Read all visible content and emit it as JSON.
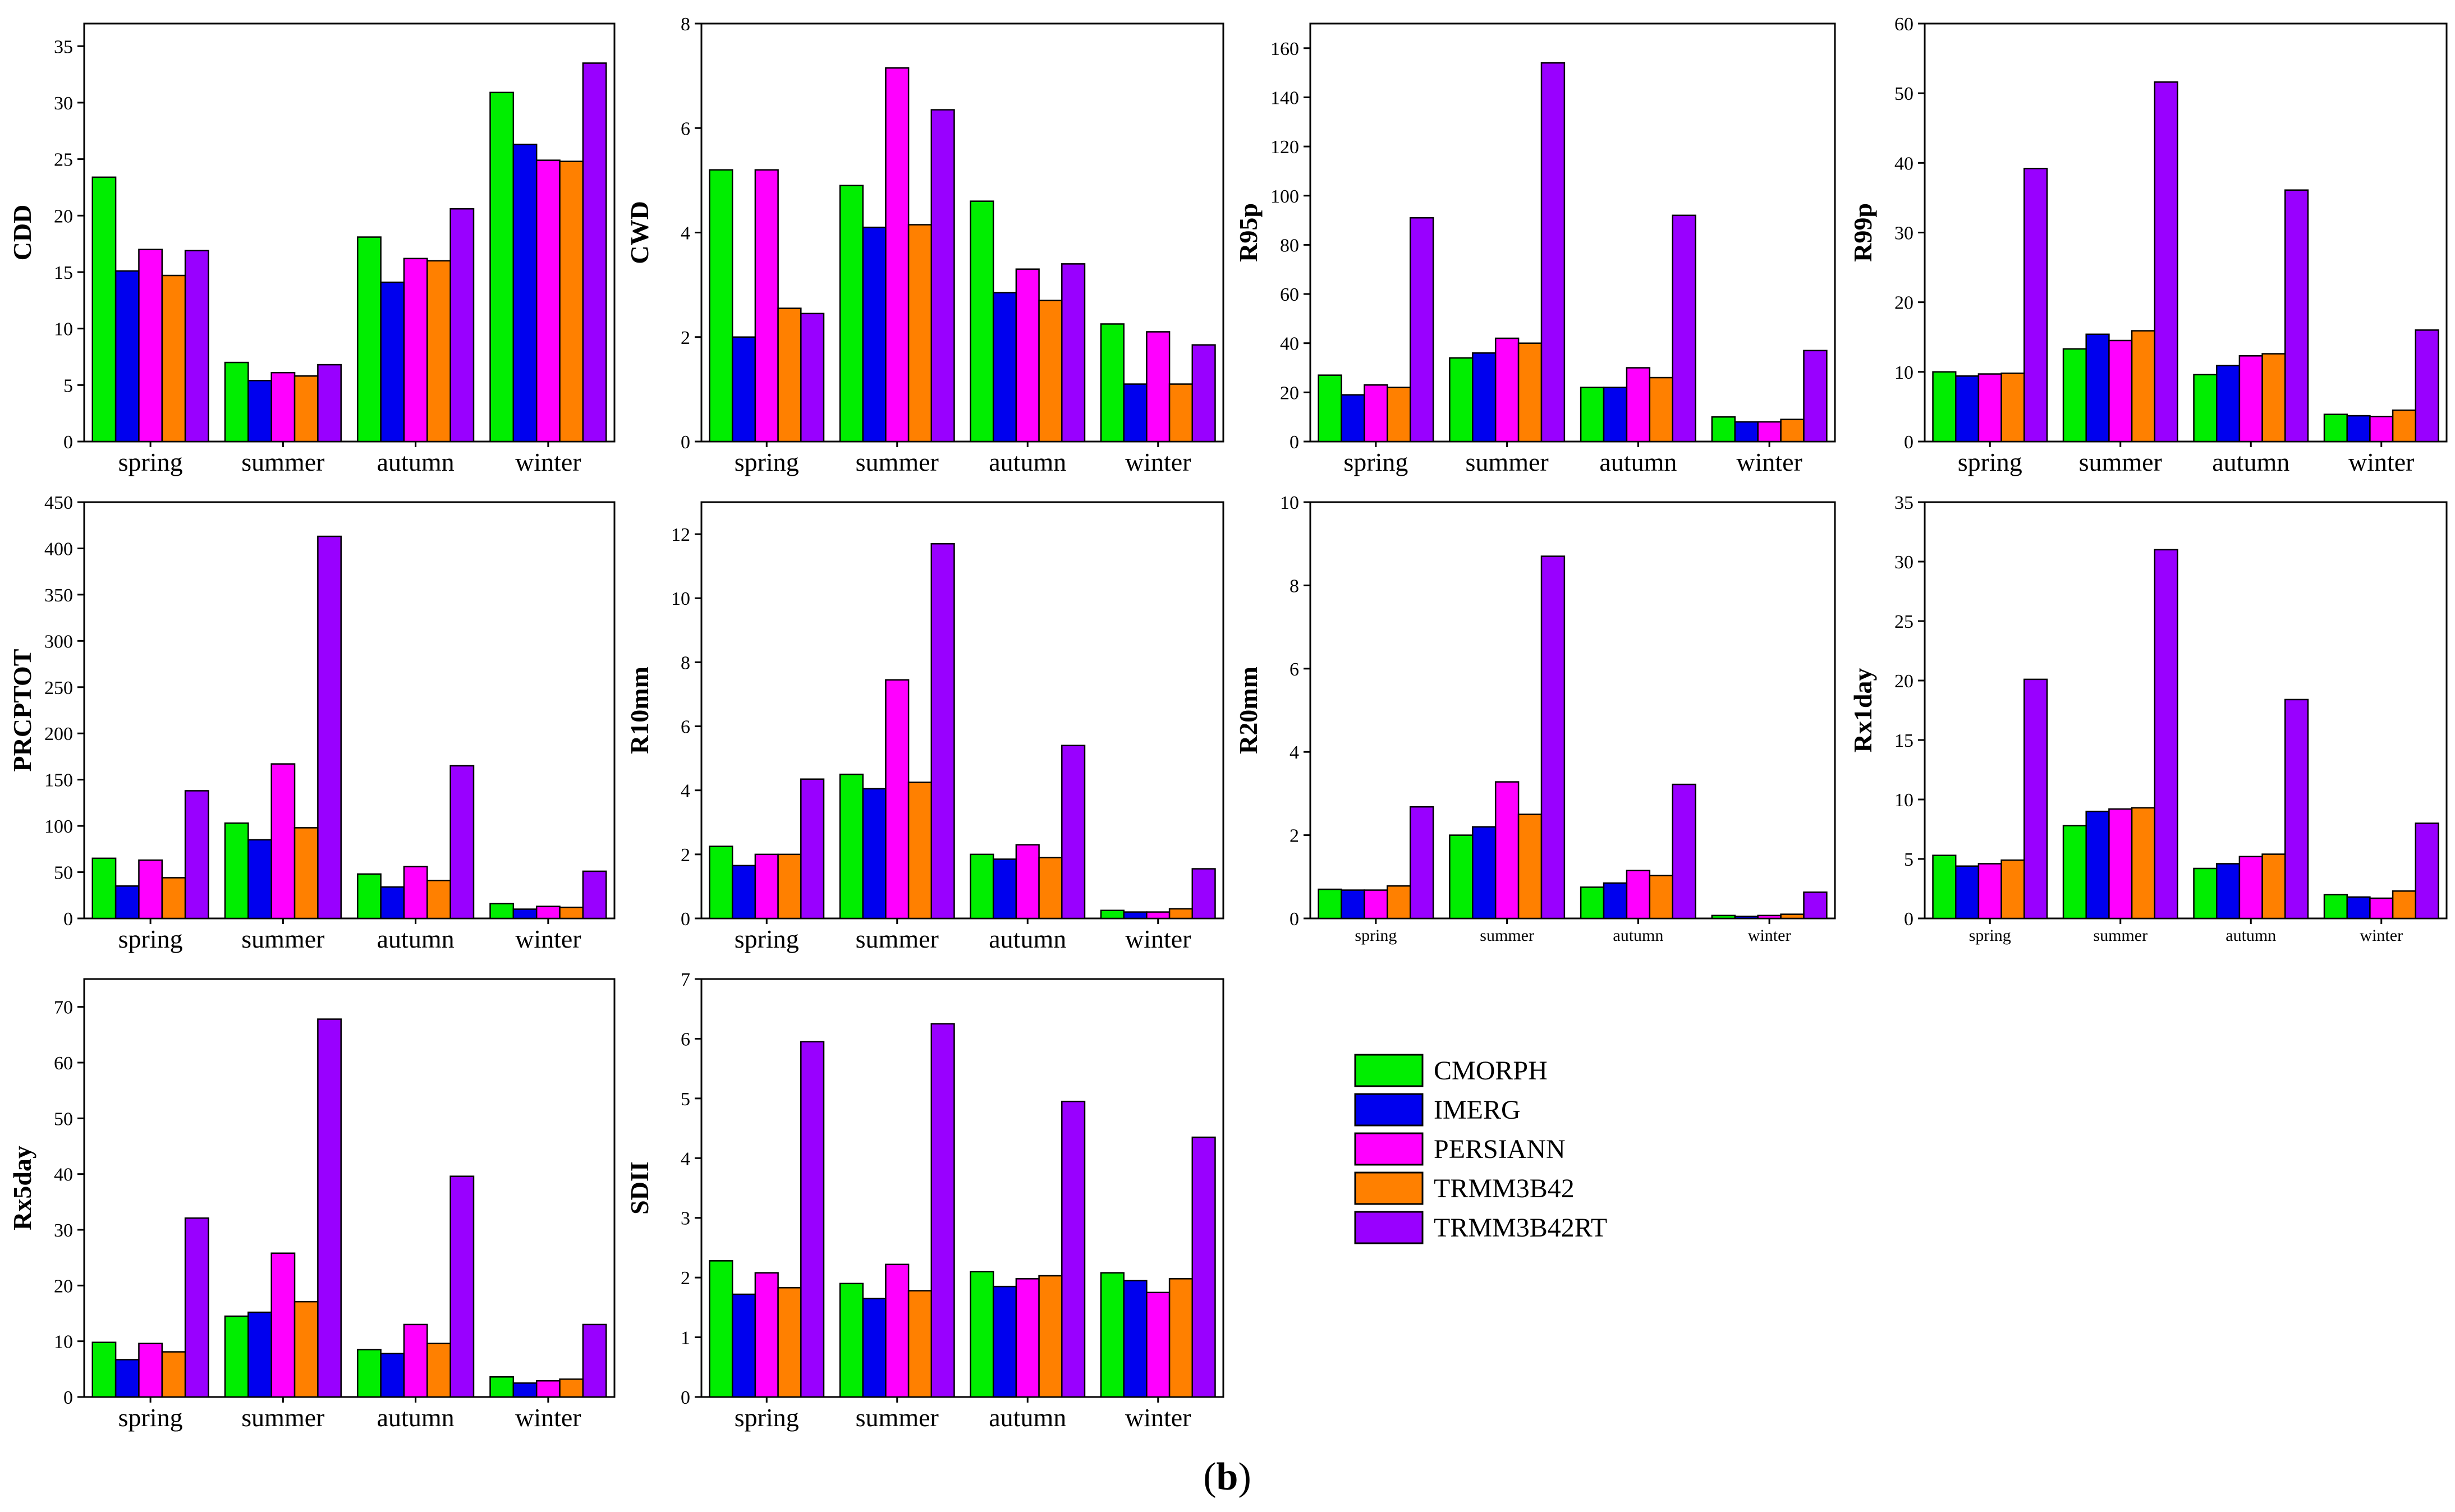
{
  "caption": {
    "open": "(",
    "letter": "b",
    "close": ")"
  },
  "legend": [
    {
      "name": "CMORPH",
      "color": "#00ee00"
    },
    {
      "name": "IMERG",
      "color": "#0000ee"
    },
    {
      "name": "PERSIANN",
      "color": "#ff00ff"
    },
    {
      "name": "TRMM3B42",
      "color": "#ff8000"
    },
    {
      "name": "TRMM3B42RT",
      "color": "#9900ff"
    }
  ],
  "chart_data": [
    {
      "type": "bar",
      "ylabel": "CDD",
      "categories": [
        "spring",
        "summer",
        "autumn",
        "winter"
      ],
      "ylim": [
        0,
        37
      ],
      "yticks": [
        0,
        5,
        10,
        15,
        20,
        25,
        30,
        35
      ],
      "series": [
        {
          "name": "CMORPH",
          "values": [
            23.4,
            7.0,
            18.1,
            30.9
          ]
        },
        {
          "name": "IMERG",
          "values": [
            15.1,
            5.4,
            14.1,
            26.3
          ]
        },
        {
          "name": "PERSIANN",
          "values": [
            17.0,
            6.1,
            16.2,
            24.9
          ]
        },
        {
          "name": "TRMM3B42",
          "values": [
            14.7,
            5.8,
            16.0,
            24.8
          ]
        },
        {
          "name": "TRMM3B42RT",
          "values": [
            16.9,
            6.8,
            20.6,
            33.5
          ]
        }
      ]
    },
    {
      "type": "bar",
      "ylabel": "CWD",
      "categories": [
        "spring",
        "summer",
        "autumn",
        "winter"
      ],
      "ylim": [
        0,
        8
      ],
      "yticks": [
        0,
        2,
        4,
        6,
        8
      ],
      "series": [
        {
          "name": "CMORPH",
          "values": [
            5.2,
            4.9,
            4.6,
            2.25
          ]
        },
        {
          "name": "IMERG",
          "values": [
            2.0,
            4.1,
            2.85,
            1.1
          ]
        },
        {
          "name": "PERSIANN",
          "values": [
            5.2,
            7.15,
            3.3,
            2.1
          ]
        },
        {
          "name": "TRMM3B42",
          "values": [
            2.55,
            4.15,
            2.7,
            1.1
          ]
        },
        {
          "name": "TRMM3B42RT",
          "values": [
            2.45,
            6.35,
            3.4,
            1.85
          ]
        }
      ]
    },
    {
      "type": "bar",
      "ylabel": "R95p",
      "categories": [
        "spring",
        "summer",
        "autumn",
        "winter"
      ],
      "ylim": [
        0,
        170
      ],
      "yticks": [
        0,
        20,
        40,
        60,
        80,
        100,
        120,
        140,
        160
      ],
      "series": [
        {
          "name": "CMORPH",
          "values": [
            27,
            34,
            22,
            10
          ]
        },
        {
          "name": "IMERG",
          "values": [
            19,
            36,
            22,
            8
          ]
        },
        {
          "name": "PERSIANN",
          "values": [
            23,
            42,
            30,
            8
          ]
        },
        {
          "name": "TRMM3B42",
          "values": [
            22,
            40,
            26,
            9
          ]
        },
        {
          "name": "TRMM3B42RT",
          "values": [
            91,
            154,
            92,
            37
          ]
        }
      ]
    },
    {
      "type": "bar",
      "ylabel": "R99p",
      "categories": [
        "spring",
        "summer",
        "autumn",
        "winter"
      ],
      "ylim": [
        0,
        60
      ],
      "yticks": [
        0,
        10,
        20,
        30,
        40,
        50,
        60
      ],
      "series": [
        {
          "name": "CMORPH",
          "values": [
            10.0,
            13.3,
            9.6,
            3.9
          ]
        },
        {
          "name": "IMERG",
          "values": [
            9.4,
            15.4,
            10.9,
            3.7
          ]
        },
        {
          "name": "PERSIANN",
          "values": [
            9.7,
            14.5,
            12.3,
            3.6
          ]
        },
        {
          "name": "TRMM3B42",
          "values": [
            9.8,
            15.9,
            12.6,
            4.5
          ]
        },
        {
          "name": "TRMM3B42RT",
          "values": [
            39.2,
            51.6,
            36.1,
            16.0
          ]
        }
      ]
    },
    {
      "type": "bar",
      "ylabel": "PRCPTOT",
      "categories": [
        "spring",
        "summer",
        "autumn",
        "winter"
      ],
      "ylim": [
        0,
        450
      ],
      "yticks": [
        0,
        50,
        100,
        150,
        200,
        250,
        300,
        350,
        400,
        450
      ],
      "series": [
        {
          "name": "CMORPH",
          "values": [
            65,
            103,
            48,
            16
          ]
        },
        {
          "name": "IMERG",
          "values": [
            35,
            85,
            34,
            10
          ]
        },
        {
          "name": "PERSIANN",
          "values": [
            63,
            167,
            56,
            13
          ]
        },
        {
          "name": "TRMM3B42",
          "values": [
            44,
            98,
            41,
            12
          ]
        },
        {
          "name": "TRMM3B42RT",
          "values": [
            138,
            413,
            165,
            51
          ]
        }
      ]
    },
    {
      "type": "bar",
      "ylabel": "R10mm",
      "categories": [
        "spring",
        "summer",
        "autumn",
        "winter"
      ],
      "ylim": [
        0,
        13
      ],
      "yticks": [
        0,
        2,
        4,
        6,
        8,
        10,
        12
      ],
      "series": [
        {
          "name": "CMORPH",
          "values": [
            2.25,
            4.5,
            2.0,
            0.25
          ]
        },
        {
          "name": "IMERG",
          "values": [
            1.65,
            4.05,
            1.85,
            0.2
          ]
        },
        {
          "name": "PERSIANN",
          "values": [
            2.0,
            7.45,
            2.3,
            0.2
          ]
        },
        {
          "name": "TRMM3B42",
          "values": [
            2.0,
            4.25,
            1.9,
            0.3
          ]
        },
        {
          "name": "TRMM3B42RT",
          "values": [
            4.35,
            11.7,
            5.4,
            1.55
          ]
        }
      ]
    },
    {
      "type": "bar",
      "ylabel": "R20mm",
      "categories": [
        "spring",
        "summer",
        "autumn",
        "winter"
      ],
      "ylim": [
        0,
        10
      ],
      "yticks": [
        0,
        2,
        4,
        6,
        8,
        10
      ],
      "small_categories": true,
      "series": [
        {
          "name": "CMORPH",
          "values": [
            0.7,
            2.0,
            0.75,
            0.07
          ]
        },
        {
          "name": "IMERG",
          "values": [
            0.68,
            2.2,
            0.85,
            0.05
          ]
        },
        {
          "name": "PERSIANN",
          "values": [
            0.68,
            3.28,
            1.15,
            0.07
          ]
        },
        {
          "name": "TRMM3B42",
          "values": [
            0.78,
            2.5,
            1.03,
            0.1
          ]
        },
        {
          "name": "TRMM3B42RT",
          "values": [
            2.68,
            8.7,
            3.22,
            0.63
          ]
        }
      ]
    },
    {
      "type": "bar",
      "ylabel": "Rx1day",
      "categories": [
        "spring",
        "summer",
        "autumn",
        "winter"
      ],
      "ylim": [
        0,
        35
      ],
      "yticks": [
        0,
        5,
        10,
        15,
        20,
        25,
        30,
        35
      ],
      "small_categories": true,
      "series": [
        {
          "name": "CMORPH",
          "values": [
            5.3,
            7.8,
            4.2,
            2.0
          ]
        },
        {
          "name": "IMERG",
          "values": [
            4.4,
            9.0,
            4.6,
            1.8
          ]
        },
        {
          "name": "PERSIANN",
          "values": [
            4.6,
            9.2,
            5.2,
            1.7
          ]
        },
        {
          "name": "TRMM3B42",
          "values": [
            4.9,
            9.3,
            5.4,
            2.3
          ]
        },
        {
          "name": "TRMM3B42RT",
          "values": [
            20.1,
            31.0,
            18.4,
            8.0
          ]
        }
      ]
    },
    {
      "type": "bar",
      "ylabel": "Rx5day",
      "categories": [
        "spring",
        "summer",
        "autumn",
        "winter"
      ],
      "ylim": [
        0,
        75
      ],
      "yticks": [
        0,
        10,
        20,
        30,
        40,
        50,
        60,
        70
      ],
      "series": [
        {
          "name": "CMORPH",
          "values": [
            9.8,
            14.5,
            8.5,
            3.6
          ]
        },
        {
          "name": "IMERG",
          "values": [
            6.7,
            15.2,
            7.8,
            2.5
          ]
        },
        {
          "name": "PERSIANN",
          "values": [
            9.6,
            25.8,
            13.0,
            2.9
          ]
        },
        {
          "name": "TRMM3B42",
          "values": [
            8.1,
            17.1,
            9.6,
            3.2
          ]
        },
        {
          "name": "TRMM3B42RT",
          "values": [
            32.1,
            67.8,
            39.6,
            13.0
          ]
        }
      ]
    },
    {
      "type": "bar",
      "ylabel": "SDII",
      "categories": [
        "spring",
        "summer",
        "autumn",
        "winter"
      ],
      "ylim": [
        0,
        7
      ],
      "yticks": [
        0,
        1,
        2,
        3,
        4,
        5,
        6,
        7
      ],
      "series": [
        {
          "name": "CMORPH",
          "values": [
            2.28,
            1.9,
            2.1,
            2.08
          ]
        },
        {
          "name": "IMERG",
          "values": [
            1.72,
            1.65,
            1.85,
            1.95
          ]
        },
        {
          "name": "PERSIANN",
          "values": [
            2.08,
            2.22,
            1.98,
            1.75
          ]
        },
        {
          "name": "TRMM3B42",
          "values": [
            1.83,
            1.78,
            2.03,
            1.98
          ]
        },
        {
          "name": "TRMM3B42RT",
          "values": [
            5.95,
            6.25,
            4.95,
            4.35
          ]
        }
      ]
    }
  ]
}
